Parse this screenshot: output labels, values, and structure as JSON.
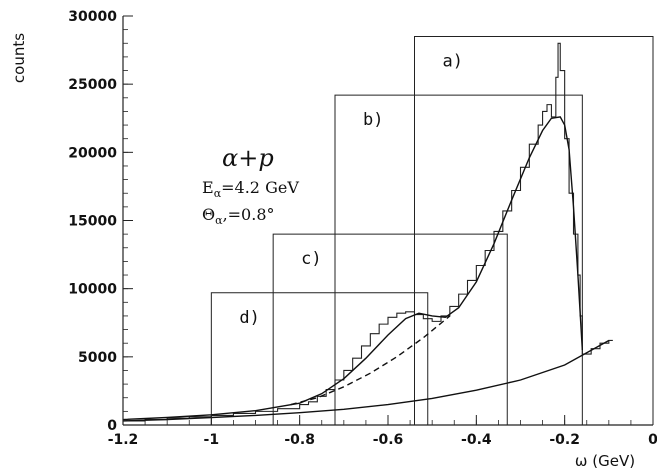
{
  "chart_data": {
    "type": "line",
    "title": "",
    "xlabel": "ω (GeV)",
    "ylabel": "counts",
    "xlim": [
      -1.2,
      0
    ],
    "ylim": [
      0,
      30000
    ],
    "x_ticks": [
      -1.2,
      -1,
      -0.8,
      -0.6,
      -0.4,
      -0.2,
      0
    ],
    "x_tick_labels": [
      "-1.2",
      "-1",
      "-0.8",
      "-0.6",
      "-0.4",
      "-0.2",
      "0"
    ],
    "y_ticks": [
      0,
      5000,
      10000,
      15000,
      20000,
      25000,
      30000
    ],
    "y_tick_labels": [
      "0",
      "5000",
      "10000",
      "15000",
      "20000",
      "25000",
      "30000"
    ],
    "annotation": {
      "reaction": "α+p",
      "energy": "E",
      "energy_sub": "α",
      "energy_value": "=4.2 GeV",
      "angle": "Θ",
      "angle_sub": "α",
      "angle_value": ",=0.8°"
    },
    "boxes": [
      {
        "label": "a)",
        "x_left": -0.54,
        "x_right": 0.0,
        "top": 28500
      },
      {
        "label": "b)",
        "x_left": -0.72,
        "x_right": -0.16,
        "top": 24200
      },
      {
        "label": "c)",
        "x_left": -0.86,
        "x_right": -0.33,
        "top": 14000
      },
      {
        "label": "d)",
        "x_left": -1.0,
        "x_right": -0.51,
        "top": 9700
      }
    ],
    "series": [
      {
        "style": "histogram",
        "x": [
          -1.2,
          -1.15,
          -1.1,
          -1.05,
          -1.0,
          -0.95,
          -0.9,
          -0.85,
          -0.8,
          -0.78,
          -0.76,
          -0.74,
          -0.72,
          -0.7,
          -0.68,
          -0.66,
          -0.64,
          -0.62,
          -0.6,
          -0.58,
          -0.56,
          -0.54,
          -0.52,
          -0.5,
          -0.48,
          -0.46,
          -0.44,
          -0.42,
          -0.4,
          -0.38,
          -0.36,
          -0.34,
          -0.32,
          -0.3,
          -0.28,
          -0.26,
          -0.25,
          -0.24,
          -0.23,
          -0.22,
          -0.215,
          -0.21,
          -0.2,
          -0.19,
          -0.18,
          -0.17,
          -0.165,
          -0.16,
          -0.14,
          -0.12,
          -0.1
        ],
        "values": [
          300,
          400,
          500,
          600,
          700,
          850,
          1000,
          1200,
          1500,
          1700,
          2100,
          2600,
          3300,
          4000,
          4900,
          5800,
          6700,
          7400,
          7900,
          8200,
          8300,
          8100,
          7800,
          7600,
          8000,
          8700,
          9600,
          10600,
          11700,
          12800,
          14200,
          15700,
          17200,
          18900,
          20600,
          22000,
          23000,
          23500,
          22600,
          25500,
          28000,
          26000,
          21000,
          17000,
          14000,
          11000,
          8000,
          5200,
          5600,
          6000,
          6200
        ]
      },
      {
        "style": "fit-total",
        "x": [
          -1.2,
          -1.1,
          -1.0,
          -0.9,
          -0.8,
          -0.75,
          -0.7,
          -0.65,
          -0.6,
          -0.56,
          -0.53,
          -0.5,
          -0.47,
          -0.44,
          -0.4,
          -0.36,
          -0.32,
          -0.28,
          -0.25,
          -0.23,
          -0.21,
          -0.2,
          -0.19,
          -0.18,
          -0.17,
          -0.16
        ],
        "values": [
          400,
          550,
          750,
          1050,
          1600,
          2300,
          3400,
          4900,
          6600,
          7800,
          8200,
          8000,
          7900,
          8600,
          10500,
          13300,
          16500,
          19600,
          21600,
          22500,
          22600,
          22000,
          20200,
          16000,
          11000,
          5500
        ]
      },
      {
        "style": "fit-dashed",
        "x": [
          -0.82,
          -0.76,
          -0.7,
          -0.64,
          -0.58,
          -0.52,
          -0.46
        ],
        "values": [
          1500,
          2000,
          2800,
          3800,
          5000,
          6400,
          8000
        ]
      },
      {
        "style": "fit-background",
        "x": [
          -1.2,
          -1.1,
          -1.0,
          -0.9,
          -0.8,
          -0.7,
          -0.6,
          -0.5,
          -0.4,
          -0.3,
          -0.2,
          -0.1
        ],
        "values": [
          300,
          400,
          550,
          700,
          900,
          1150,
          1500,
          1950,
          2550,
          3300,
          4400,
          6200
        ]
      }
    ]
  }
}
